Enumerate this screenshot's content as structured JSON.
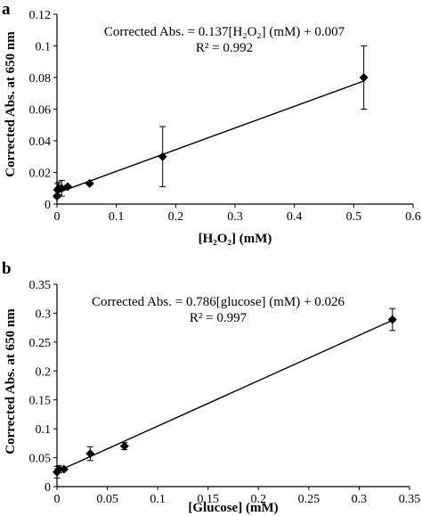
{
  "chart_data": [
    {
      "panel": "a",
      "type": "scatter",
      "xlabel": "[H₂O₂] (mM)",
      "ylabel": "Corrected Abs. at 650 nm",
      "xlim": [
        0,
        0.6
      ],
      "ylim": [
        0,
        0.12
      ],
      "xticks": [
        "0",
        "0.1",
        "0.2",
        "0.3",
        "0.4",
        "0.5",
        "0.6"
      ],
      "yticks": [
        "0",
        "0.02",
        "0.04",
        "0.06",
        "0.08",
        "0.1",
        "0.12"
      ],
      "equation": "Corrected Abs. = 0.137[H₂O₂] (mM) + 0.007",
      "r2": "R² = 0.992",
      "marker": "diamond",
      "grid": false,
      "fit": {
        "slope": 0.137,
        "intercept": 0.007
      },
      "points": [
        {
          "x": 0.0,
          "y": 0.005,
          "err": 0.001
        },
        {
          "x": 0.001,
          "y": 0.009,
          "err": 0.004
        },
        {
          "x": 0.003,
          "y": 0.01,
          "err": 0.004
        },
        {
          "x": 0.008,
          "y": 0.01,
          "err": 0.005
        },
        {
          "x": 0.018,
          "y": 0.011,
          "err": 0.001
        },
        {
          "x": 0.055,
          "y": 0.013,
          "err": 0.001
        },
        {
          "x": 0.178,
          "y": 0.03,
          "err": 0.019
        },
        {
          "x": 0.517,
          "y": 0.08,
          "err": 0.02
        }
      ]
    },
    {
      "panel": "b",
      "type": "scatter",
      "xlabel": "[Glucose] (mM)",
      "ylabel": "Corrected Abs. at 650 nm",
      "xlim": [
        0,
        0.35
      ],
      "ylim": [
        0,
        0.35
      ],
      "xticks": [
        "0",
        "0.05",
        "0.1",
        "0.15",
        "0.2",
        "0.25",
        "0.3",
        "0.35"
      ],
      "yticks": [
        "0",
        "0.05",
        "0.1",
        "0.15",
        "0.2",
        "0.25",
        "0.3",
        "0.35"
      ],
      "equation": "Corrected Abs. = 0.786[glucose] (mM) + 0.026",
      "r2": "R² = 0.997",
      "marker": "diamond",
      "grid": false,
      "fit": {
        "slope": 0.786,
        "intercept": 0.026
      },
      "points": [
        {
          "x": 0.0,
          "y": 0.025,
          "err": 0.01
        },
        {
          "x": 0.002,
          "y": 0.03,
          "err": 0.006
        },
        {
          "x": 0.007,
          "y": 0.03,
          "err": 0.002
        },
        {
          "x": 0.033,
          "y": 0.057,
          "err": 0.012
        },
        {
          "x": 0.067,
          "y": 0.07,
          "err": 0.006
        },
        {
          "x": 0.333,
          "y": 0.289,
          "err": 0.019
        }
      ]
    }
  ]
}
